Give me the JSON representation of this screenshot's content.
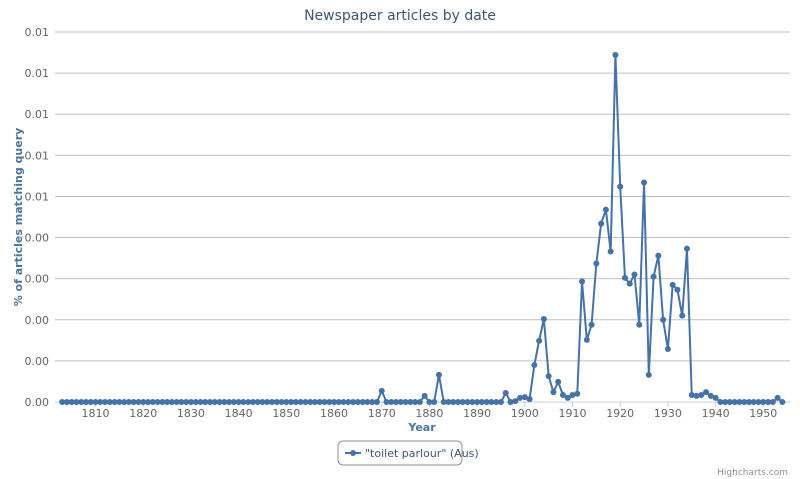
{
  "chart_data": {
    "type": "line",
    "title": "Newspaper articles by date",
    "x_label": "Year",
    "y_label": "% of articles matching query",
    "x": [
      1803,
      1804,
      1805,
      1806,
      1807,
      1808,
      1809,
      1810,
      1811,
      1812,
      1813,
      1814,
      1815,
      1816,
      1817,
      1818,
      1819,
      1820,
      1821,
      1822,
      1823,
      1824,
      1825,
      1826,
      1827,
      1828,
      1829,
      1830,
      1831,
      1832,
      1833,
      1834,
      1835,
      1836,
      1837,
      1838,
      1839,
      1840,
      1841,
      1842,
      1843,
      1844,
      1845,
      1846,
      1847,
      1848,
      1849,
      1850,
      1851,
      1852,
      1853,
      1854,
      1855,
      1856,
      1857,
      1858,
      1859,
      1860,
      1861,
      1862,
      1863,
      1864,
      1865,
      1866,
      1867,
      1868,
      1869,
      1870,
      1871,
      1872,
      1873,
      1874,
      1875,
      1876,
      1877,
      1878,
      1879,
      1880,
      1881,
      1882,
      1883,
      1884,
      1885,
      1886,
      1887,
      1888,
      1889,
      1890,
      1891,
      1892,
      1893,
      1894,
      1895,
      1896,
      1897,
      1898,
      1899,
      1900,
      1901,
      1902,
      1903,
      1904,
      1905,
      1906,
      1907,
      1908,
      1909,
      1910,
      1911,
      1912,
      1913,
      1914,
      1915,
      1916,
      1917,
      1918,
      1919,
      1920,
      1921,
      1922,
      1923,
      1924,
      1925,
      1926,
      1927,
      1928,
      1929,
      1930,
      1931,
      1932,
      1933,
      1934,
      1935,
      1936,
      1937,
      1938,
      1939,
      1940,
      1941,
      1942,
      1943,
      1944,
      1945,
      1946,
      1947,
      1948,
      1949,
      1950,
      1951,
      1952,
      1953,
      1954
    ],
    "series": [
      {
        "name": "\"toilet parlour\" (Aus)",
        "color": "#4572a7",
        "values": [
          0,
          0,
          0,
          0,
          0,
          0,
          0,
          0,
          0,
          0,
          0,
          0,
          0,
          0,
          0,
          0,
          0,
          0,
          0,
          0,
          0,
          0,
          0,
          0,
          0,
          0,
          0,
          0,
          0,
          0,
          0,
          0,
          0,
          0,
          0,
          0,
          0,
          0,
          0,
          0,
          0,
          0,
          0,
          0,
          0,
          0,
          0,
          0,
          0,
          0,
          0,
          0,
          0,
          0,
          0,
          0,
          0,
          0,
          0,
          0,
          0,
          0,
          0,
          0,
          0,
          0,
          0,
          0.00027,
          0,
          0,
          0,
          0,
          0,
          0,
          0,
          0,
          0.00015,
          0,
          0,
          0.00066,
          0,
          0,
          0,
          0,
          0,
          0,
          0,
          0,
          0,
          0,
          0,
          0,
          0,
          0.00022,
          0,
          2e-05,
          0.0001,
          0.00012,
          7e-05,
          0.0009,
          0.00149,
          0.00202,
          0.00063,
          0.00024,
          0.00049,
          0.00017,
          0.0001,
          0.00017,
          0.0002,
          0.00293,
          0.00151,
          0.00188,
          0.00337,
          0.00434,
          0.00468,
          0.00366,
          0.00844,
          0.00524,
          0.00302,
          0.00288,
          0.0031,
          0.00188,
          0.00534,
          0.00066,
          0.00305,
          0.00356,
          0.002,
          0.00129,
          0.00285,
          0.00273,
          0.0021,
          0.00373,
          0.00017,
          0.00015,
          0.00017,
          0.00024,
          0.00015,
          0.0001,
          0,
          0,
          0,
          0,
          0,
          0,
          0,
          0,
          0,
          0,
          0,
          0,
          0.0001,
          0
        ]
      }
    ],
    "xlim": [
      1801.5,
      1955.6
    ],
    "xticks": [
      1810,
      1820,
      1830,
      1840,
      1850,
      1860,
      1870,
      1880,
      1890,
      1900,
      1910,
      1920,
      1930,
      1940,
      1950
    ],
    "ylim": [
      0,
      0.009
    ],
    "yticks": [
      {
        "value": 0,
        "label": "0.00"
      },
      {
        "value": 0.001,
        "label": "0.00"
      },
      {
        "value": 0.002,
        "label": "0.00"
      },
      {
        "value": 0.003,
        "label": "0.00"
      },
      {
        "value": 0.004,
        "label": "0.00"
      },
      {
        "value": 0.005,
        "label": "0.01"
      },
      {
        "value": 0.006,
        "label": "0.01"
      },
      {
        "value": 0.007,
        "label": "0.01"
      },
      {
        "value": 0.008,
        "label": "0.01"
      },
      {
        "value": 0.009,
        "label": "0.01"
      }
    ],
    "grid": true,
    "legend": "bottom",
    "credits": "Highcharts.com"
  }
}
